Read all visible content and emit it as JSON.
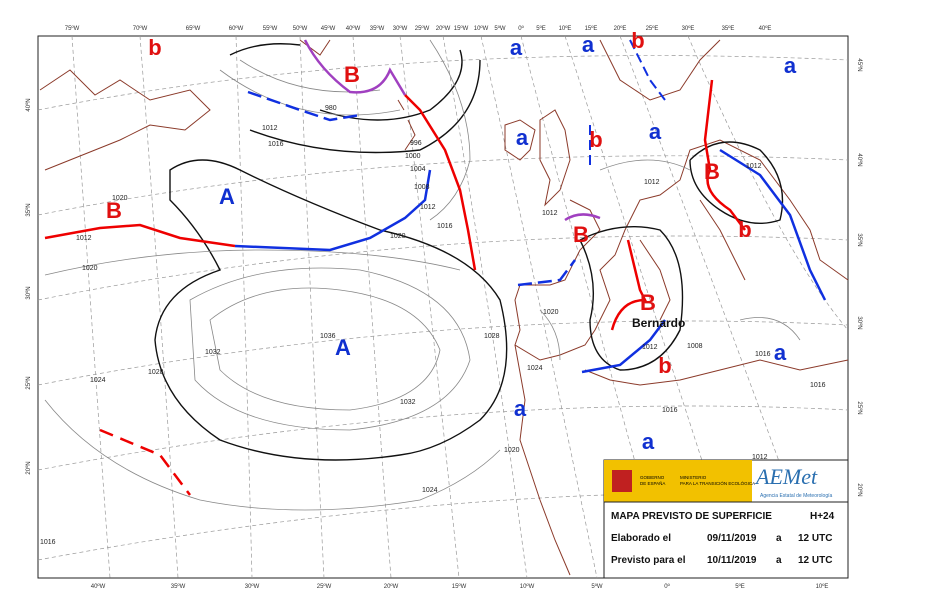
{
  "map": {
    "top_lon_labels": [
      "75ºW",
      "70ºW",
      "65ºW",
      "60ºW",
      "55ºW",
      "50ºW",
      "45ºW",
      "40ºW",
      "35ºW",
      "30ºW",
      "25ºW",
      "20ºW",
      "15ºW",
      "10ºW",
      "5ºW",
      "0º",
      "5ºE",
      "10ºE",
      "15ºE",
      "20ºE",
      "25ºE",
      "30ºE",
      "35ºE",
      "40ºE"
    ],
    "bottom_lon_labels": [
      "40ºW",
      "35ºW",
      "30ºW",
      "25ºW",
      "20ºW",
      "15ºW",
      "10ºW",
      "5ºW",
      "0º",
      "5ºE",
      "10ºE"
    ],
    "left_lat_labels": [
      "40ºN",
      "35ºN",
      "30ºN",
      "25ºN",
      "20ºN"
    ],
    "right_lat_labels": [
      "45ºN",
      "40ºN",
      "35ºN",
      "30ºN",
      "25ºN",
      "20ºN"
    ],
    "centers": [
      "b",
      "a",
      "a",
      "b",
      "B",
      "a",
      "a",
      "a",
      "b",
      "B",
      "A",
      "B",
      "b",
      "B",
      "B",
      "A",
      "b",
      "a",
      "a",
      "a"
    ],
    "isobar_labels": [
      "1012",
      "1020",
      "1020",
      "1032",
      "1028",
      "1024",
      "1036",
      "1028",
      "1032",
      "1024",
      "1016",
      "1012",
      "1016",
      "1020",
      "996",
      "1000",
      "1004",
      "1008",
      "980",
      "1012",
      "1016",
      "1012",
      "1012",
      "1012",
      "1020",
      "1024",
      "1020",
      "1008",
      "1012",
      "1016",
      "1016",
      "1016",
      "1012"
    ],
    "storm_name": "Bernardo"
  },
  "legend": {
    "gov_1": "GOBIERNO",
    "gov_2": "DE ESPAÑA",
    "ministry_1": "MINISTERIO",
    "ministry_2": "PARA LA TRANSICIÓN ECOLÓGICA",
    "brand": "AEMet",
    "brand_sub": "Agencia Estatal de Meteorología",
    "title": "MAPA PREVISTO DE SUPERFICIE",
    "lead": "H+24",
    "rows": [
      {
        "label": "Elaborado el",
        "date": "09/11/2019",
        "sep": "a",
        "time": "12 UTC"
      },
      {
        "label": "Previsto para el",
        "date": "10/11/2019",
        "sep": "a",
        "time": "12 UTC"
      }
    ]
  }
}
